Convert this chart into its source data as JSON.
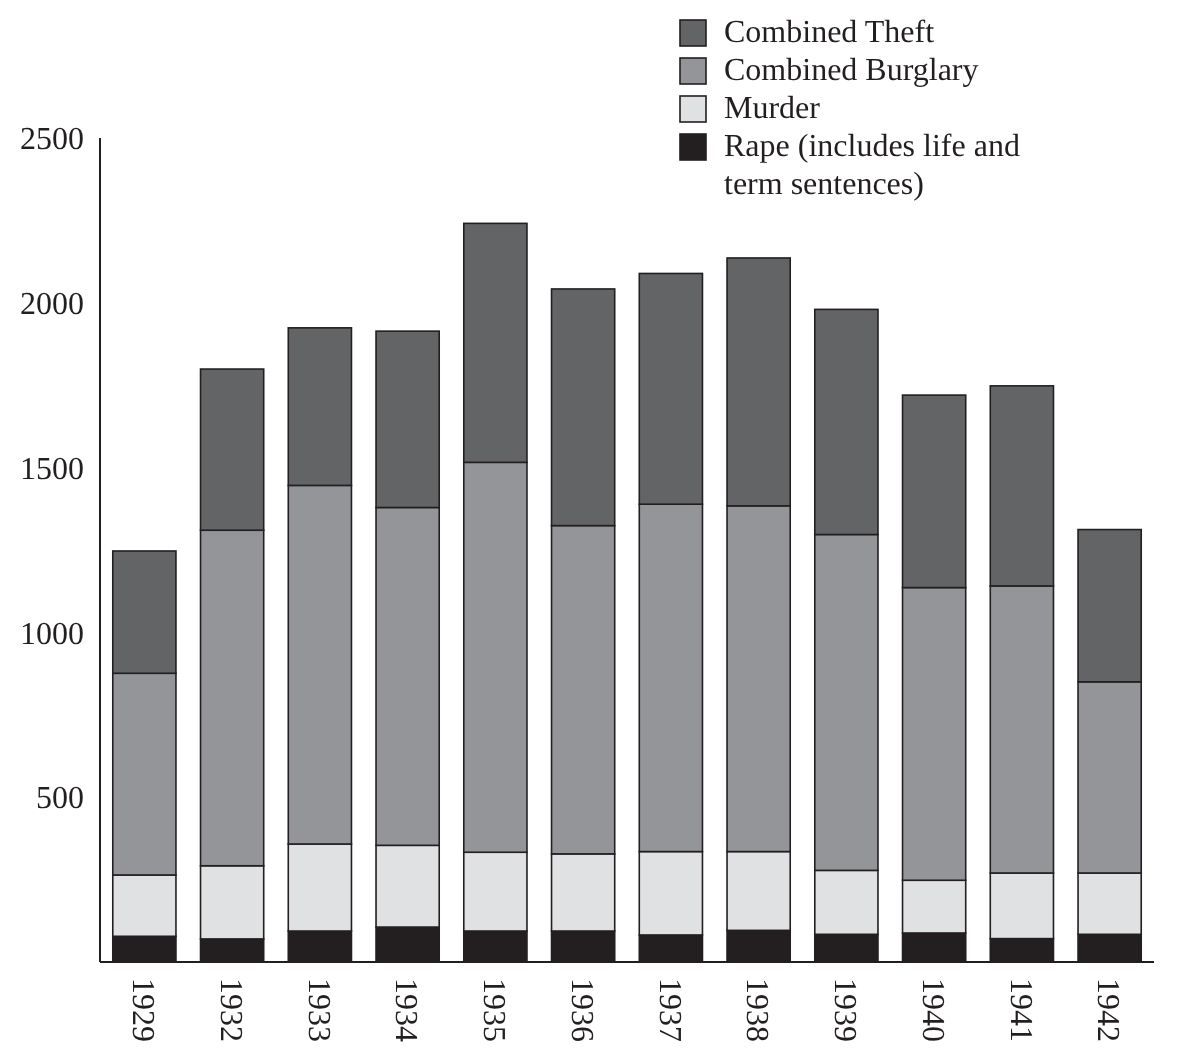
{
  "chart_data": {
    "type": "bar",
    "stacked": true,
    "categories": [
      "1929",
      "1932",
      "1933",
      "1934",
      "1935",
      "1936",
      "1937",
      "1938",
      "1939",
      "1940",
      "1941",
      "1942"
    ],
    "series": [
      {
        "name": "Rape (includes life and term sentences)",
        "color": "#231f20",
        "values": [
          78,
          70,
          94,
          106,
          94,
          94,
          82,
          96,
          84,
          88,
          71,
          84
        ]
      },
      {
        "name": "Murder",
        "color": "#e0e1e3",
        "values": [
          186,
          222,
          264,
          248,
          239,
          234,
          253,
          239,
          194,
          160,
          199,
          186
        ]
      },
      {
        "name": "Combined Burglary",
        "color": "#939598",
        "values": [
          612,
          1018,
          1088,
          1025,
          1183,
          996,
          1054,
          1049,
          1019,
          888,
          871,
          580
        ]
      },
      {
        "name": "Combined Theft",
        "color": "#636466",
        "values": [
          371,
          489,
          478,
          535,
          725,
          718,
          700,
          752,
          683,
          584,
          607,
          462
        ]
      }
    ],
    "ylim": [
      0,
      2500
    ],
    "yticks": [
      500,
      1000,
      1500,
      2000,
      2500
    ],
    "grid": false,
    "legend": "top right"
  }
}
